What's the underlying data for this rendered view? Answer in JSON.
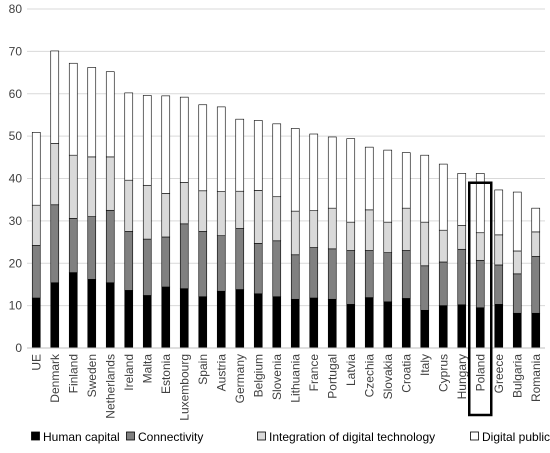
{
  "chart_data": {
    "type": "bar",
    "stacked": true,
    "categories": [
      "UE",
      "Denmark",
      "Finland",
      "Sweden",
      "Netherlands",
      "Ireland",
      "Malta",
      "Estonia",
      "Luxembourg",
      "Spain",
      "Austria",
      "Germany",
      "Belgium",
      "Slovenia",
      "Lithuania",
      "France",
      "Portugal",
      "Latvia",
      "Czechia",
      "Slovakia",
      "Croatia",
      "Italy",
      "Cyprus",
      "Hungary",
      "Poland",
      "Greece",
      "Bulgaria",
      "Romania"
    ],
    "series": [
      {
        "name": "Human capital",
        "color": "#000000",
        "values": [
          11.8,
          15.4,
          17.8,
          16.2,
          15.4,
          13.6,
          12.4,
          14.4,
          14.0,
          12.1,
          13.4,
          13.8,
          12.8,
          12.1,
          11.5,
          11.8,
          11.5,
          10.3,
          11.9,
          10.9,
          11.7,
          8.9,
          10.0,
          10.2,
          9.5,
          10.3,
          8.2,
          8.2
        ]
      },
      {
        "name": "Connectivity",
        "color": "#808080",
        "values": [
          12.4,
          18.4,
          12.8,
          14.8,
          17.1,
          13.9,
          13.3,
          11.8,
          15.3,
          15.4,
          13.1,
          14.4,
          11.9,
          13.2,
          10.5,
          11.9,
          11.9,
          12.7,
          11.1,
          11.6,
          11.3,
          10.5,
          10.3,
          13.1,
          11.2,
          9.3,
          9.3,
          13.4
        ]
      },
      {
        "name": "Integration of digital technology",
        "color": "#d9d9d9",
        "values": [
          9.5,
          14.5,
          14.9,
          14.1,
          12.6,
          12.1,
          12.7,
          10.3,
          9.8,
          9.6,
          10.4,
          8.8,
          12.5,
          10.4,
          10.3,
          8.7,
          9.6,
          6.7,
          9.6,
          7.2,
          10.0,
          10.3,
          7.5,
          5.6,
          6.5,
          7.1,
          5.4,
          5.8
        ]
      },
      {
        "name": "Digital public services",
        "color": "#ffffff",
        "values": [
          17.2,
          21.8,
          21.7,
          21.1,
          20.1,
          20.6,
          21.2,
          23.0,
          20.1,
          20.3,
          20.0,
          17.0,
          16.5,
          17.2,
          19.5,
          18.1,
          16.8,
          19.7,
          14.8,
          17.0,
          13.1,
          15.8,
          15.6,
          12.3,
          14.0,
          10.6,
          13.9,
          5.6
        ]
      }
    ],
    "ylim": [
      0,
      80
    ],
    "yticks": [
      0,
      10,
      20,
      30,
      40,
      50,
      60,
      70,
      80
    ],
    "grid": true,
    "legend": "bottom",
    "highlighted_category": "Poland"
  }
}
